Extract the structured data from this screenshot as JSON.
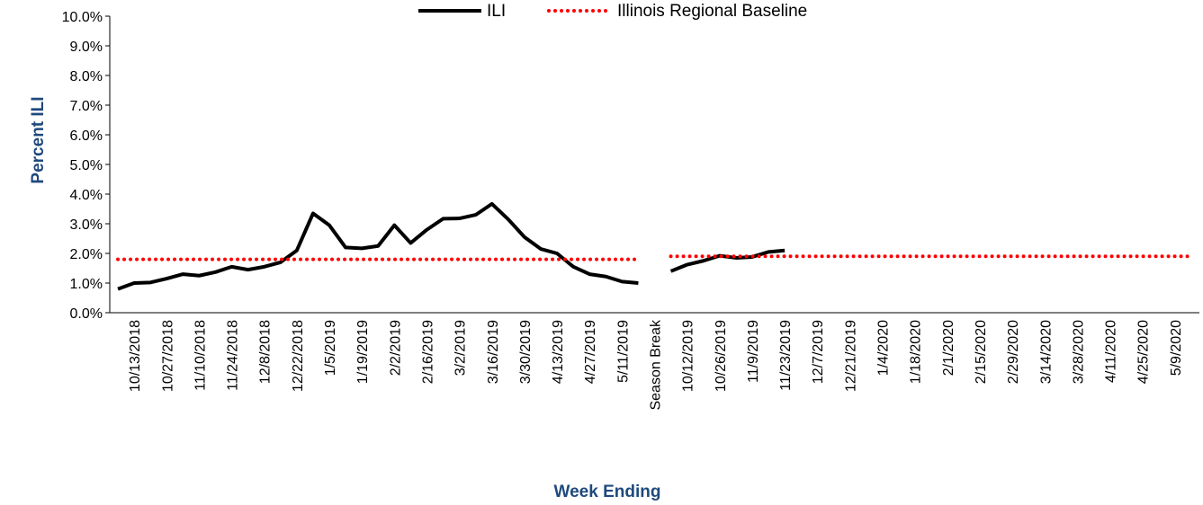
{
  "chart_data": {
    "type": "line",
    "x_label": "Week Ending",
    "y_label": "Percent ILI",
    "categories": [
      null,
      "10/13/2018",
      null,
      "10/27/2018",
      null,
      "11/10/2018",
      null,
      "11/24/2018",
      null,
      "12/8/2018",
      null,
      "12/22/2018",
      null,
      "1/5/2019",
      null,
      "1/19/2019",
      null,
      "2/2/2019",
      null,
      "2/16/2019",
      null,
      "3/2/2019",
      null,
      "3/16/2019",
      null,
      "3/30/2019",
      null,
      "4/13/2019",
      null,
      "4/27/2019",
      null,
      "5/11/2019",
      null,
      "Season Break",
      null,
      "10/12/2019",
      null,
      "10/26/2019",
      null,
      "11/9/2019",
      null,
      "11/23/2019",
      null,
      "12/7/2019",
      null,
      "12/21/2019",
      null,
      "1/4/2020",
      null,
      "1/18/2020",
      null,
      "2/1/2020",
      null,
      "2/15/2020",
      null,
      "2/29/2020",
      null,
      "3/14/2020",
      null,
      "3/28/2020",
      null,
      "4/11/2020",
      null,
      "4/25/2020",
      null,
      "5/9/2020",
      null
    ],
    "series": [
      {
        "name": "ILI",
        "color": "#000000",
        "style": "solid",
        "values": [
          0.8,
          1.0,
          1.02,
          1.15,
          1.3,
          1.25,
          1.37,
          1.55,
          1.45,
          1.55,
          1.7,
          2.1,
          3.35,
          2.95,
          2.2,
          2.17,
          2.25,
          2.95,
          2.35,
          2.8,
          3.17,
          3.18,
          3.3,
          3.67,
          3.15,
          2.55,
          2.15,
          2.0,
          1.55,
          1.3,
          1.22,
          1.05,
          1.0,
          null,
          1.4,
          1.62,
          1.75,
          1.92,
          1.85,
          1.88,
          2.05,
          2.1,
          null,
          null,
          null,
          null,
          null,
          null,
          null,
          null,
          null,
          null,
          null,
          null,
          null,
          null,
          null,
          null,
          null,
          null,
          null,
          null,
          null,
          null,
          null,
          null,
          null
        ]
      },
      {
        "name": "Illinois Regional Baseline",
        "color": "#ff0000",
        "style": "dotted",
        "values": [
          1.8,
          1.8,
          1.8,
          1.8,
          1.8,
          1.8,
          1.8,
          1.8,
          1.8,
          1.8,
          1.8,
          1.8,
          1.8,
          1.8,
          1.8,
          1.8,
          1.8,
          1.8,
          1.8,
          1.8,
          1.8,
          1.8,
          1.8,
          1.8,
          1.8,
          1.8,
          1.8,
          1.8,
          1.8,
          1.8,
          1.8,
          1.8,
          1.8,
          null,
          1.9,
          1.9,
          1.9,
          1.9,
          1.9,
          1.9,
          1.9,
          1.9,
          1.9,
          1.9,
          1.9,
          1.9,
          1.9,
          1.9,
          1.9,
          1.9,
          1.9,
          1.9,
          1.9,
          1.9,
          1.9,
          1.9,
          1.9,
          1.9,
          1.9,
          1.9,
          1.9,
          1.9,
          1.9,
          1.9,
          1.9,
          1.9,
          1.9
        ]
      }
    ],
    "ylim": [
      0,
      10
    ],
    "yticks": [
      {
        "value": 0,
        "label": "0.0%"
      },
      {
        "value": 1,
        "label": "1.0%"
      },
      {
        "value": 2,
        "label": "2.0%"
      },
      {
        "value": 3,
        "label": "3.0%"
      },
      {
        "value": 4,
        "label": "4.0%"
      },
      {
        "value": 5,
        "label": "5.0%"
      },
      {
        "value": 6,
        "label": "6.0%"
      },
      {
        "value": 7,
        "label": "7.0%"
      },
      {
        "value": 8,
        "label": "8.0%"
      },
      {
        "value": 9,
        "label": "9.0%"
      },
      {
        "value": 10,
        "label": "10.0%"
      }
    ],
    "grid": false,
    "legend": "top"
  }
}
